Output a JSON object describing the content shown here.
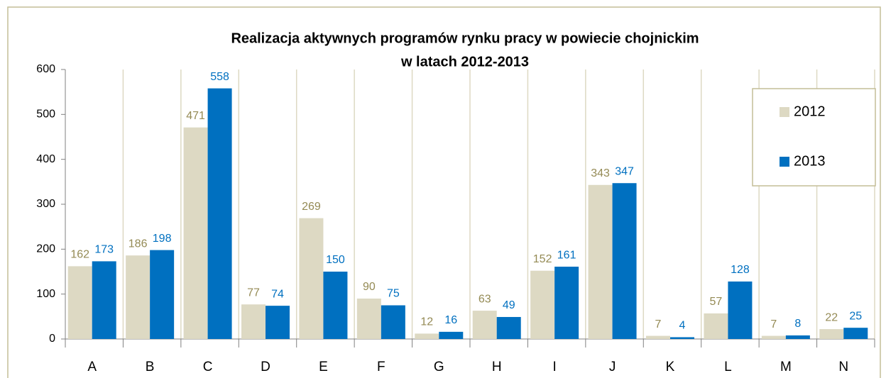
{
  "chart_data": {
    "type": "bar",
    "title": [
      "Realizacja aktywnych programów rynku pracy w powiecie chojnickim",
      "w latach 2012-2013"
    ],
    "categories": [
      "A",
      "B",
      "C",
      "D",
      "E",
      "F",
      "G",
      "H",
      "I",
      "J",
      "K",
      "L",
      "M",
      "N"
    ],
    "series": [
      {
        "name": "2012",
        "color": "#ddd9c3",
        "label_color": "#948a54",
        "values": [
          162,
          186,
          471,
          77,
          269,
          90,
          12,
          63,
          152,
          343,
          7,
          57,
          7,
          22
        ]
      },
      {
        "name": "2013",
        "color": "#0070c0",
        "label_color": "#0070c0",
        "values": [
          173,
          198,
          558,
          74,
          150,
          75,
          16,
          49,
          161,
          347,
          4,
          128,
          8,
          25
        ]
      }
    ],
    "ylim": [
      0,
      600
    ],
    "yticks": [
      0,
      100,
      200,
      300,
      400,
      500,
      600
    ],
    "legend": "right"
  }
}
